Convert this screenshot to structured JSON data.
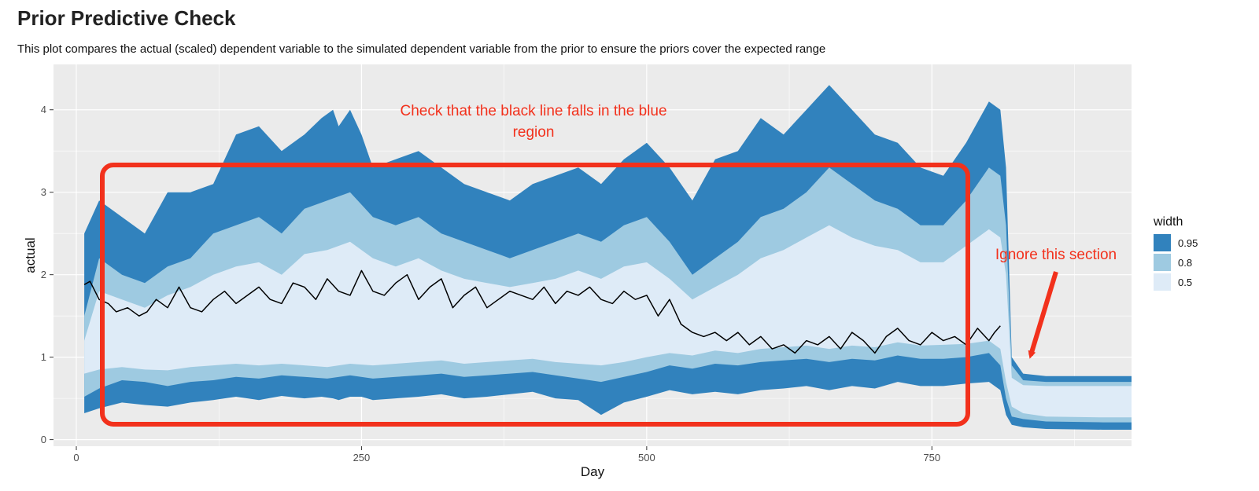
{
  "chart_data": {
    "type": "area",
    "title": "Prior Predictive Check",
    "subtitle": "This plot compares the actual (scaled) dependent variable to the simulated dependent variable from the prior to ensure the priors cover the expected range",
    "xlabel": "Day",
    "ylabel": "actual",
    "xlim": [
      -20,
      925
    ],
    "ylim": [
      -0.08,
      4.55
    ],
    "x_ticks": [
      0,
      250,
      500,
      750
    ],
    "x_tick_labels": [
      "0",
      "250",
      "500",
      "750"
    ],
    "y_ticks": [
      0,
      1,
      2,
      3,
      4
    ],
    "y_tick_labels": [
      "0",
      "1",
      "2",
      "3",
      "4"
    ],
    "grid": true,
    "legend": {
      "title": "width",
      "position": "right",
      "entries": [
        {
          "label": "0.95",
          "color": "#3182bd"
        },
        {
          "label": "0.8",
          "color": "#9ecae1"
        },
        {
          "label": "0.5",
          "color": "#deebf7"
        }
      ]
    },
    "series": [
      {
        "name": "0.95",
        "x": [
          7,
          20,
          40,
          60,
          80,
          100,
          120,
          140,
          160,
          180,
          200,
          215,
          225,
          230,
          240,
          250,
          260,
          280,
          300,
          320,
          340,
          360,
          380,
          400,
          420,
          440,
          460,
          480,
          500,
          520,
          540,
          560,
          580,
          600,
          620,
          640,
          660,
          680,
          700,
          720,
          740,
          760,
          780,
          800,
          810,
          815,
          820,
          830,
          850,
          900,
          925
        ],
        "lower": [
          0.32,
          0.38,
          0.45,
          0.42,
          0.4,
          0.45,
          0.48,
          0.52,
          0.48,
          0.53,
          0.5,
          0.52,
          0.5,
          0.48,
          0.52,
          0.52,
          0.48,
          0.5,
          0.52,
          0.55,
          0.5,
          0.52,
          0.55,
          0.58,
          0.5,
          0.48,
          0.3,
          0.45,
          0.52,
          0.6,
          0.55,
          0.58,
          0.55,
          0.6,
          0.62,
          0.65,
          0.6,
          0.65,
          0.62,
          0.7,
          0.65,
          0.65,
          0.68,
          0.7,
          0.6,
          0.3,
          0.18,
          0.15,
          0.13,
          0.12,
          0.12
        ],
        "upper": [
          2.5,
          2.9,
          2.7,
          2.5,
          3.0,
          3.0,
          3.1,
          3.7,
          3.8,
          3.5,
          3.7,
          3.9,
          4.0,
          3.8,
          4.0,
          3.7,
          3.3,
          3.4,
          3.5,
          3.3,
          3.1,
          3.0,
          2.9,
          3.1,
          3.2,
          3.3,
          3.1,
          3.4,
          3.6,
          3.3,
          2.9,
          3.4,
          3.5,
          3.9,
          3.7,
          4.0,
          4.3,
          4.0,
          3.7,
          3.6,
          3.3,
          3.2,
          3.6,
          4.1,
          4.0,
          3.3,
          1.0,
          0.8,
          0.77,
          0.77,
          0.77
        ]
      },
      {
        "name": "0.8",
        "x": [
          7,
          20,
          40,
          60,
          80,
          100,
          120,
          140,
          160,
          180,
          200,
          220,
          240,
          260,
          280,
          300,
          320,
          340,
          360,
          380,
          400,
          420,
          440,
          460,
          480,
          500,
          520,
          540,
          560,
          580,
          600,
          620,
          640,
          660,
          680,
          700,
          720,
          740,
          760,
          780,
          800,
          810,
          815,
          820,
          830,
          850,
          900,
          925
        ],
        "lower": [
          0.52,
          0.62,
          0.72,
          0.7,
          0.65,
          0.7,
          0.72,
          0.76,
          0.74,
          0.78,
          0.76,
          0.74,
          0.78,
          0.74,
          0.76,
          0.78,
          0.8,
          0.76,
          0.78,
          0.8,
          0.82,
          0.78,
          0.74,
          0.7,
          0.76,
          0.82,
          0.9,
          0.86,
          0.92,
          0.9,
          0.94,
          0.96,
          0.98,
          0.94,
          0.98,
          0.96,
          1.02,
          0.98,
          0.98,
          1.0,
          1.05,
          0.9,
          0.5,
          0.28,
          0.25,
          0.22,
          0.21,
          0.21
        ],
        "upper": [
          1.5,
          2.2,
          2.0,
          1.9,
          2.1,
          2.2,
          2.5,
          2.6,
          2.7,
          2.5,
          2.8,
          2.9,
          3.0,
          2.7,
          2.6,
          2.7,
          2.5,
          2.4,
          2.3,
          2.2,
          2.3,
          2.4,
          2.5,
          2.4,
          2.6,
          2.7,
          2.4,
          2.0,
          2.2,
          2.4,
          2.7,
          2.8,
          3.0,
          3.3,
          3.1,
          2.9,
          2.8,
          2.6,
          2.6,
          2.9,
          3.3,
          3.2,
          2.6,
          0.9,
          0.72,
          0.7,
          0.7,
          0.7
        ]
      },
      {
        "name": "0.5",
        "x": [
          7,
          20,
          40,
          60,
          80,
          100,
          120,
          140,
          160,
          180,
          200,
          220,
          240,
          260,
          280,
          300,
          320,
          340,
          360,
          380,
          400,
          420,
          440,
          460,
          480,
          500,
          520,
          540,
          560,
          580,
          600,
          620,
          640,
          660,
          680,
          700,
          720,
          740,
          760,
          780,
          800,
          810,
          815,
          820,
          830,
          850,
          900,
          925
        ],
        "lower": [
          0.8,
          0.85,
          0.88,
          0.85,
          0.84,
          0.88,
          0.9,
          0.92,
          0.9,
          0.92,
          0.9,
          0.88,
          0.92,
          0.9,
          0.92,
          0.94,
          0.96,
          0.92,
          0.94,
          0.96,
          0.98,
          0.94,
          0.92,
          0.9,
          0.94,
          1.0,
          1.05,
          1.02,
          1.08,
          1.05,
          1.1,
          1.12,
          1.14,
          1.1,
          1.14,
          1.12,
          1.18,
          1.14,
          1.15,
          1.16,
          1.2,
          1.1,
          0.7,
          0.4,
          0.32,
          0.28,
          0.27,
          0.27
        ],
        "upper": [
          1.2,
          1.8,
          1.7,
          1.6,
          1.75,
          1.85,
          2.0,
          2.1,
          2.15,
          2.0,
          2.25,
          2.3,
          2.4,
          2.2,
          2.1,
          2.2,
          2.05,
          1.95,
          1.9,
          1.85,
          1.9,
          1.95,
          2.05,
          1.95,
          2.1,
          2.15,
          1.95,
          1.7,
          1.85,
          2.0,
          2.2,
          2.3,
          2.45,
          2.6,
          2.45,
          2.35,
          2.3,
          2.15,
          2.15,
          2.35,
          2.55,
          2.45,
          2.0,
          0.75,
          0.66,
          0.65,
          0.65,
          0.65
        ]
      },
      {
        "name": "actual",
        "color": "#000000",
        "x": [
          7,
          12,
          20,
          28,
          35,
          45,
          55,
          62,
          70,
          80,
          90,
          100,
          110,
          120,
          130,
          140,
          150,
          160,
          170,
          180,
          190,
          200,
          210,
          220,
          230,
          240,
          250,
          260,
          270,
          280,
          290,
          300,
          310,
          320,
          330,
          340,
          350,
          360,
          370,
          380,
          390,
          400,
          410,
          420,
          430,
          440,
          450,
          460,
          470,
          480,
          490,
          500,
          510,
          520,
          530,
          540,
          550,
          560,
          570,
          580,
          590,
          600,
          610,
          620,
          630,
          640,
          650,
          660,
          670,
          680,
          690,
          700,
          710,
          720,
          730,
          740,
          750,
          760,
          770,
          780,
          790,
          800,
          805,
          810
        ],
        "values": [
          1.88,
          1.92,
          1.7,
          1.65,
          1.55,
          1.6,
          1.5,
          1.55,
          1.7,
          1.6,
          1.85,
          1.6,
          1.55,
          1.7,
          1.8,
          1.65,
          1.75,
          1.85,
          1.7,
          1.65,
          1.9,
          1.85,
          1.7,
          1.95,
          1.8,
          1.75,
          2.05,
          1.8,
          1.75,
          1.9,
          2.0,
          1.7,
          1.85,
          1.95,
          1.6,
          1.75,
          1.85,
          1.6,
          1.7,
          1.8,
          1.75,
          1.7,
          1.85,
          1.65,
          1.8,
          1.75,
          1.85,
          1.7,
          1.65,
          1.8,
          1.7,
          1.75,
          1.5,
          1.7,
          1.4,
          1.3,
          1.25,
          1.3,
          1.2,
          1.3,
          1.15,
          1.25,
          1.1,
          1.15,
          1.05,
          1.2,
          1.15,
          1.25,
          1.1,
          1.3,
          1.2,
          1.05,
          1.25,
          1.35,
          1.2,
          1.15,
          1.3,
          1.2,
          1.25,
          1.15,
          1.35,
          1.2,
          1.3,
          1.38
        ]
      }
    ],
    "annotations": [
      {
        "text": "Check that the black line falls in the blue",
        "color": "#f2311c"
      },
      {
        "text": "region",
        "color": "#f2311c"
      },
      {
        "text": "Ignore this section",
        "color": "#f2311c"
      }
    ]
  }
}
